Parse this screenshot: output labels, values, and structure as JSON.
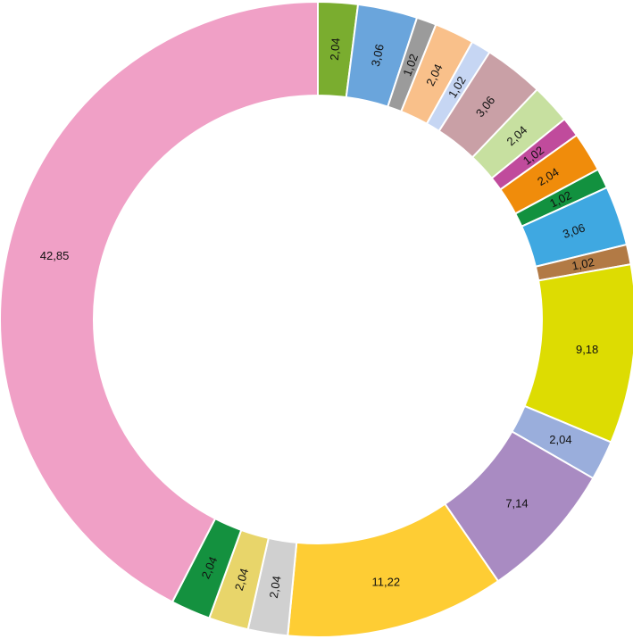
{
  "chart_data": {
    "type": "pie",
    "donut": true,
    "title": "",
    "labels_format": "decimal-comma",
    "slices": [
      {
        "value": 2.04,
        "label": "2,04",
        "color": "#7aad2f",
        "rotate": true
      },
      {
        "value": 3.06,
        "label": "3,06",
        "color": "#6aa5dc",
        "rotate": true
      },
      {
        "value": 1.02,
        "label": "1,02",
        "color": "#9b9b9b",
        "rotate": true
      },
      {
        "value": 2.04,
        "label": "2,04",
        "color": "#f9c08a",
        "rotate": true
      },
      {
        "value": 1.02,
        "label": "1,02",
        "color": "#c6d6f3",
        "rotate": true
      },
      {
        "value": 3.06,
        "label": "3,06",
        "color": "#c9a0a6",
        "rotate": true
      },
      {
        "value": 2.04,
        "label": "2,04",
        "color": "#c7e0a0",
        "rotate": true
      },
      {
        "value": 1.02,
        "label": "1,02",
        "color": "#c04b9c",
        "rotate": true
      },
      {
        "value": 2.04,
        "label": "2,04",
        "color": "#f08c0b",
        "rotate": true
      },
      {
        "value": 1.02,
        "label": "1,02",
        "color": "#12913f",
        "rotate": true
      },
      {
        "value": 3.06,
        "label": "3,06",
        "color": "#3fa8e1",
        "rotate": true
      },
      {
        "value": 1.02,
        "label": "1,02",
        "color": "#b27a45",
        "rotate": true
      },
      {
        "value": 9.18,
        "label": "9,18",
        "color": "#dddc02",
        "rotate": false
      },
      {
        "value": 2.04,
        "label": "2,04",
        "color": "#9aaedc",
        "rotate": false
      },
      {
        "value": 7.14,
        "label": "7,14",
        "color": "#a98bc2",
        "rotate": false
      },
      {
        "value": 11.22,
        "label": "11,22",
        "color": "#fecd34",
        "rotate": false
      },
      {
        "value": 2.04,
        "label": "2,04",
        "color": "#d0d0d0",
        "rotate": true
      },
      {
        "value": 2.04,
        "label": "2,04",
        "color": "#e8d56a",
        "rotate": true
      },
      {
        "value": 2.04,
        "label": "2,04",
        "color": "#14913f",
        "rotate": true
      },
      {
        "value": 42.85,
        "label": "42,85",
        "color": "#f0a0c6",
        "rotate": false
      }
    ]
  }
}
